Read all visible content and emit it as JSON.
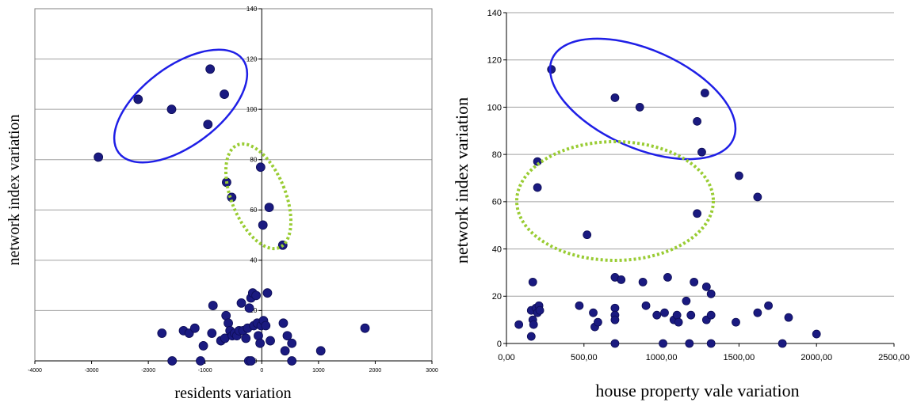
{
  "chart_data": [
    {
      "type": "scatter",
      "xlabel": "residents variation",
      "ylabel": "network index variation",
      "xlim": [
        -4000,
        3000
      ],
      "ylim": [
        0,
        140
      ],
      "xticks": [
        -4000,
        -3000,
        -2000,
        -1000,
        0,
        1000,
        2000,
        3000
      ],
      "xtick_labels": [
        "-4000",
        "-3000",
        "-2000",
        "-1000",
        "0",
        "1000",
        "2000",
        "3000"
      ],
      "yticks": [
        0,
        20,
        40,
        60,
        80,
        100,
        120,
        140
      ],
      "ytick_labels": [
        "0",
        "20",
        "40",
        "60",
        "80",
        "100",
        "120",
        "140"
      ],
      "grid": "horizontal",
      "point_color": "#1a1a80",
      "series": [
        {
          "points": [
            [
              -2880,
              81
            ],
            [
              -2180,
              104
            ],
            [
              -1590,
              100
            ],
            [
              -950,
              94
            ],
            [
              -910,
              116
            ],
            [
              -660,
              106
            ],
            [
              -620,
              71
            ],
            [
              -530,
              65
            ],
            [
              -20,
              77
            ],
            [
              130,
              61
            ],
            [
              20,
              54
            ],
            [
              370,
              46
            ],
            [
              -1760,
              11
            ],
            [
              -1380,
              12
            ],
            [
              -1280,
              11
            ],
            [
              -1180,
              13
            ],
            [
              -1030,
              6
            ],
            [
              -880,
              11
            ],
            [
              -860,
              22
            ],
            [
              -720,
              8
            ],
            [
              -650,
              9
            ],
            [
              -630,
              18
            ],
            [
              -590,
              15
            ],
            [
              -560,
              12
            ],
            [
              -520,
              10
            ],
            [
              -480,
              11
            ],
            [
              -440,
              10
            ],
            [
              -400,
              12
            ],
            [
              -360,
              23
            ],
            [
              -330,
              12
            ],
            [
              -280,
              9
            ],
            [
              -250,
              13
            ],
            [
              -220,
              21
            ],
            [
              -190,
              25
            ],
            [
              -160,
              27
            ],
            [
              -140,
              14
            ],
            [
              -100,
              26
            ],
            [
              -80,
              15
            ],
            [
              -60,
              10
            ],
            [
              -30,
              7
            ],
            [
              -10,
              14
            ],
            [
              30,
              16
            ],
            [
              70,
              14
            ],
            [
              100,
              27
            ],
            [
              150,
              8
            ],
            [
              380,
              15
            ],
            [
              450,
              10
            ],
            [
              530,
              7
            ],
            [
              -1580,
              0
            ],
            [
              -1080,
              0
            ],
            [
              -230,
              0
            ],
            [
              -190,
              0
            ],
            [
              410,
              4
            ],
            [
              530,
              0
            ],
            [
              1040,
              4
            ],
            [
              1820,
              13
            ]
          ]
        }
      ],
      "annotations": [
        {
          "shape": "ellipse",
          "style": "solid",
          "color": "#1f1fe6",
          "center": [
            -1500,
            102
          ],
          "note": ""
        },
        {
          "shape": "ellipse",
          "style": "dotted",
          "color": "#99cc33",
          "center": [
            -80,
            65
          ],
          "note": ""
        }
      ]
    },
    {
      "type": "scatter",
      "xlabel": "house property vale variation",
      "ylabel": "network index variation",
      "xlim": [
        0,
        2500
      ],
      "ylim": [
        0,
        140
      ],
      "xticks": [
        0,
        500,
        1000,
        1500,
        2000,
        2500
      ],
      "xtick_labels": [
        "0,00",
        "500,00",
        "1000,00",
        "1500,00",
        "2000,00",
        "2500,00"
      ],
      "yticks": [
        0,
        20,
        40,
        60,
        80,
        100,
        120,
        140
      ],
      "ytick_labels": [
        "0",
        "20",
        "40",
        "60",
        "80",
        "100",
        "120",
        "140"
      ],
      "grid": "horizontal",
      "point_color": "#1a1a80",
      "series": [
        {
          "points": [
            [
              290,
              116
            ],
            [
              700,
              104
            ],
            [
              860,
              100
            ],
            [
              1280,
              106
            ],
            [
              1230,
              94
            ],
            [
              1260,
              81
            ],
            [
              1500,
              71
            ],
            [
              1620,
              62
            ],
            [
              200,
              77
            ],
            [
              200,
              66
            ],
            [
              1230,
              55
            ],
            [
              520,
              46
            ],
            [
              80,
              8
            ],
            [
              160,
              3
            ],
            [
              170,
              26
            ],
            [
              160,
              14
            ],
            [
              170,
              10
            ],
            [
              175,
              8
            ],
            [
              190,
              15
            ],
            [
              200,
              13
            ],
            [
              210,
              16
            ],
            [
              215,
              14
            ],
            [
              470,
              16
            ],
            [
              560,
              13
            ],
            [
              570,
              7
            ],
            [
              590,
              9
            ],
            [
              700,
              28
            ],
            [
              700,
              15
            ],
            [
              700,
              12
            ],
            [
              700,
              10
            ],
            [
              700,
              0
            ],
            [
              740,
              27
            ],
            [
              880,
              26
            ],
            [
              900,
              16
            ],
            [
              970,
              12
            ],
            [
              1020,
              13
            ],
            [
              1040,
              28
            ],
            [
              1080,
              10
            ],
            [
              1100,
              12
            ],
            [
              1110,
              9
            ],
            [
              1160,
              18
            ],
            [
              1190,
              12
            ],
            [
              1210,
              26
            ],
            [
              1290,
              24
            ],
            [
              1290,
              10
            ],
            [
              1320,
              12
            ],
            [
              1320,
              21
            ],
            [
              1010,
              0
            ],
            [
              1180,
              0
            ],
            [
              1320,
              0
            ],
            [
              1480,
              9
            ],
            [
              1620,
              13
            ],
            [
              1690,
              16
            ],
            [
              1820,
              11
            ],
            [
              2000,
              4
            ],
            [
              1780,
              0
            ]
          ]
        }
      ],
      "annotations": [
        {
          "shape": "ellipse",
          "style": "solid",
          "color": "#1f1fe6",
          "center": [
            990,
            100
          ],
          "note": ""
        },
        {
          "shape": "ellipse",
          "style": "dotted",
          "color": "#99cc33",
          "center": [
            680,
            60
          ],
          "note": ""
        }
      ]
    }
  ]
}
